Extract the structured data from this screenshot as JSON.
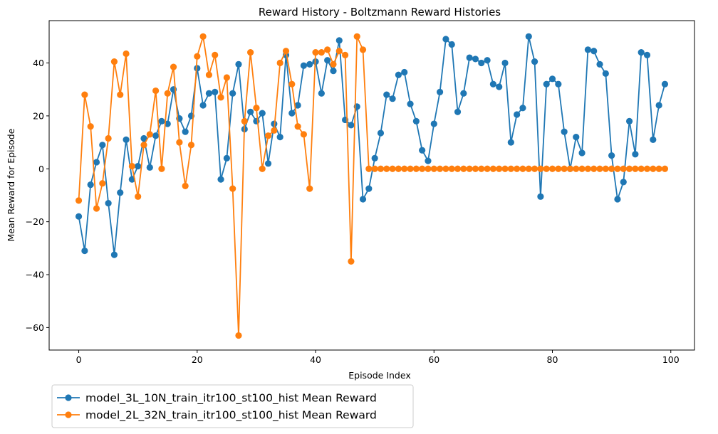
{
  "chart_data": {
    "type": "line",
    "title": "Reward History - Boltzmann Reward Histories",
    "xlabel": "Episode Index",
    "ylabel": "Mean Reward for Episode",
    "xlim": [
      -5,
      104
    ],
    "ylim": [
      -68.5,
      56
    ],
    "xticks": [
      0,
      20,
      40,
      60,
      80,
      100
    ],
    "yticks": [
      -60,
      -40,
      -20,
      0,
      20,
      40
    ],
    "grid": false,
    "legend_position": "below-left",
    "markers": true,
    "series": [
      {
        "name": "model_3L_10N_train_itr100_st100_hist Mean Reward",
        "color": "#1f77b4",
        "x": [
          0,
          1,
          2,
          3,
          4,
          5,
          6,
          7,
          8,
          9,
          10,
          11,
          12,
          13,
          14,
          15,
          16,
          17,
          18,
          19,
          20,
          21,
          22,
          23,
          24,
          25,
          26,
          27,
          28,
          29,
          30,
          31,
          32,
          33,
          34,
          35,
          36,
          37,
          38,
          39,
          40,
          41,
          42,
          43,
          44,
          45,
          46,
          47,
          48,
          49,
          50,
          51,
          52,
          53,
          54,
          55,
          56,
          57,
          58,
          59,
          60,
          61,
          62,
          63,
          64,
          65,
          66,
          67,
          68,
          69,
          70,
          71,
          72,
          73,
          74,
          75,
          76,
          77,
          78,
          79,
          80,
          81,
          82,
          83,
          84,
          85,
          86,
          87,
          88,
          89,
          90,
          91,
          92,
          93,
          94,
          95,
          96,
          97,
          98,
          99
        ],
        "values": [
          -18,
          -31,
          -6,
          2.5,
          9,
          -13,
          -32.5,
          -9,
          11,
          -4,
          1,
          11.5,
          0.5,
          12.5,
          18,
          17,
          30,
          19,
          14,
          20,
          38,
          24,
          28.5,
          29,
          -4,
          4,
          28.5,
          39.5,
          15,
          21.5,
          18,
          21,
          2,
          17,
          12,
          43,
          21,
          24,
          39,
          39.5,
          40.5,
          28.5,
          41,
          37,
          48.5,
          18.5,
          16.5,
          23.5,
          -11.5,
          -7.5,
          4,
          13.5,
          28,
          26.5,
          35.5,
          36.5,
          24.5,
          18,
          7,
          3,
          17,
          29,
          49,
          47,
          21.5,
          28.5,
          42,
          41.5,
          40,
          41,
          32,
          31,
          40,
          10,
          20.5,
          23,
          50,
          40.5,
          -10.5,
          32,
          34,
          32,
          14,
          0,
          12,
          6,
          45,
          44.5,
          39.5,
          36,
          5,
          -11.5,
          -5,
          18,
          5.5,
          44,
          43,
          11,
          24,
          32
        ]
      },
      {
        "name": "model_2L_32N_train_itr100_st100_hist Mean Reward",
        "color": "#ff7f0e",
        "x": [
          0,
          1,
          2,
          3,
          4,
          5,
          6,
          7,
          8,
          9,
          10,
          11,
          12,
          13,
          14,
          15,
          16,
          17,
          18,
          19,
          20,
          21,
          22,
          23,
          24,
          25,
          26,
          27,
          28,
          29,
          30,
          31,
          32,
          33,
          34,
          35,
          36,
          37,
          38,
          39,
          40,
          41,
          42,
          43,
          44,
          45,
          46,
          47,
          48,
          49,
          50,
          51,
          52,
          53,
          54,
          55,
          56,
          57,
          58,
          59,
          60,
          61,
          62,
          63,
          64,
          65,
          66,
          67,
          68,
          69,
          70,
          71,
          72,
          73,
          74,
          75,
          76,
          77,
          78,
          79,
          80,
          81,
          82,
          83,
          84,
          85,
          86,
          87,
          88,
          89,
          90,
          91,
          92,
          93,
          94,
          95,
          96,
          97,
          98,
          99
        ],
        "values": [
          -12,
          28,
          16,
          -15,
          -5.5,
          11.5,
          40.5,
          28,
          43.5,
          1,
          -10.5,
          9,
          13,
          29.5,
          0,
          28.5,
          38.5,
          10,
          -6.5,
          9,
          42.5,
          50,
          35.5,
          43,
          27,
          34.5,
          -7.5,
          -63,
          18,
          44,
          23,
          0,
          12.5,
          14.5,
          40,
          44.5,
          32,
          16,
          13,
          -7.5,
          44,
          44,
          45,
          39.5,
          44.5,
          43,
          -35,
          50,
          45,
          0,
          0,
          0,
          0,
          0,
          0,
          0,
          0,
          0,
          0,
          0,
          0,
          0,
          0,
          0,
          0,
          0,
          0,
          0,
          0,
          0,
          0,
          0,
          0,
          0,
          0,
          0,
          0,
          0,
          0,
          0,
          0,
          0,
          0,
          0,
          0,
          0,
          0,
          0,
          0,
          0,
          0,
          0,
          0,
          0,
          0,
          0,
          0,
          0,
          0,
          0
        ]
      }
    ]
  }
}
